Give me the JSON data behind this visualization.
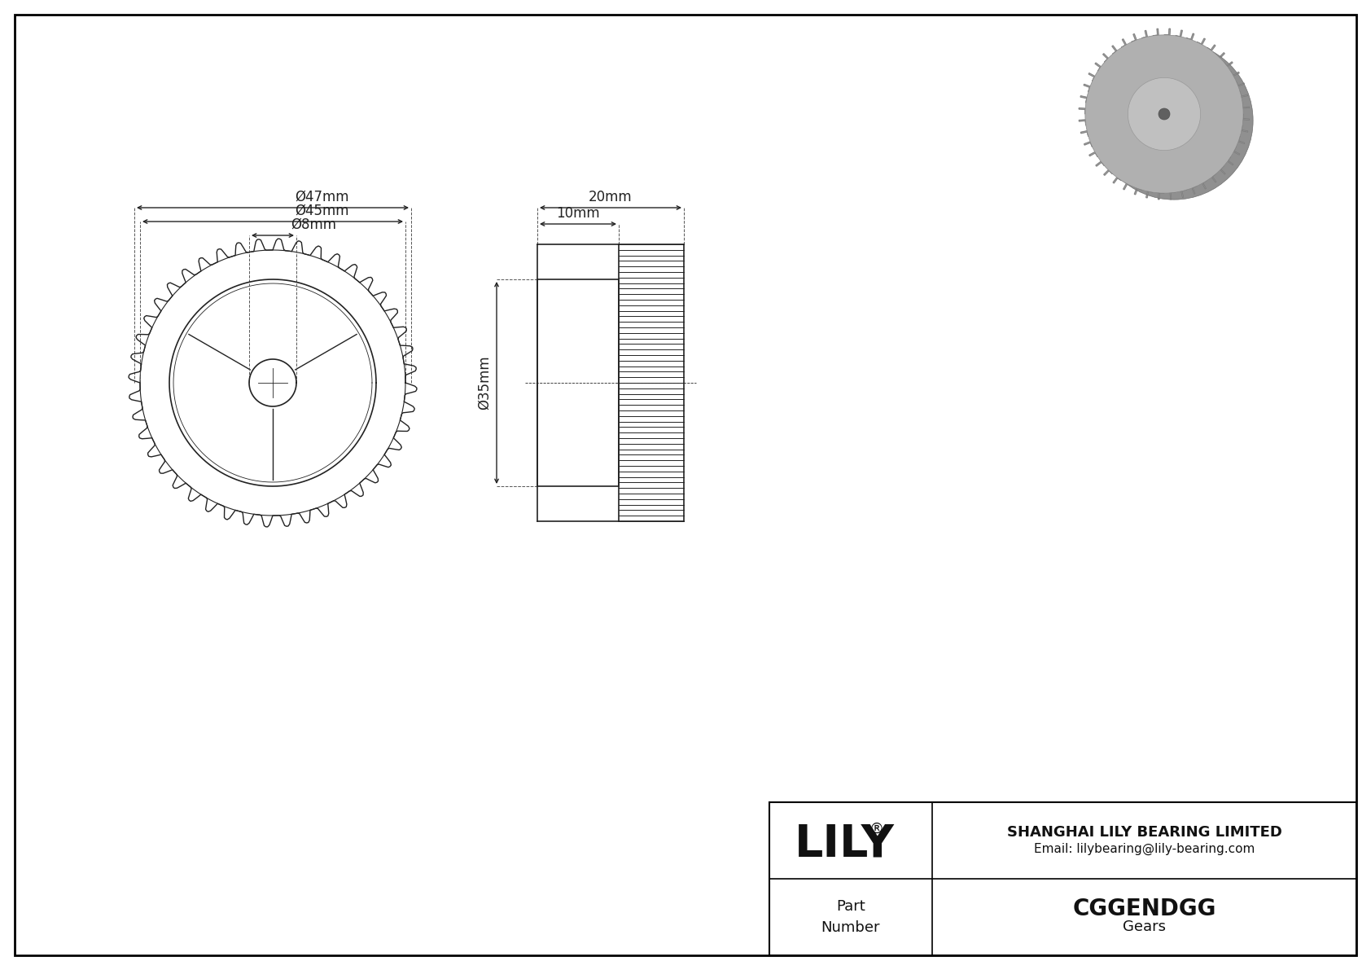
{
  "bg_color": "#ffffff",
  "line_color": "#222222",
  "border_color": "#000000",
  "num_teeth": 44,
  "dim_47": "Ø47mm",
  "dim_45": "Ø45mm",
  "dim_8": "Ø8mm",
  "dim_20": "20mm",
  "dim_10": "10mm",
  "dim_35": "Ø35mm",
  "company": "SHANGHAI LILY BEARING LIMITED",
  "email": "Email: lilybearing@lily-bearing.com",
  "part_number": "CGGENDGG",
  "category": "Gears",
  "lily_text": "LILY",
  "registered": "®",
  "part_label": "Part\nNumber"
}
